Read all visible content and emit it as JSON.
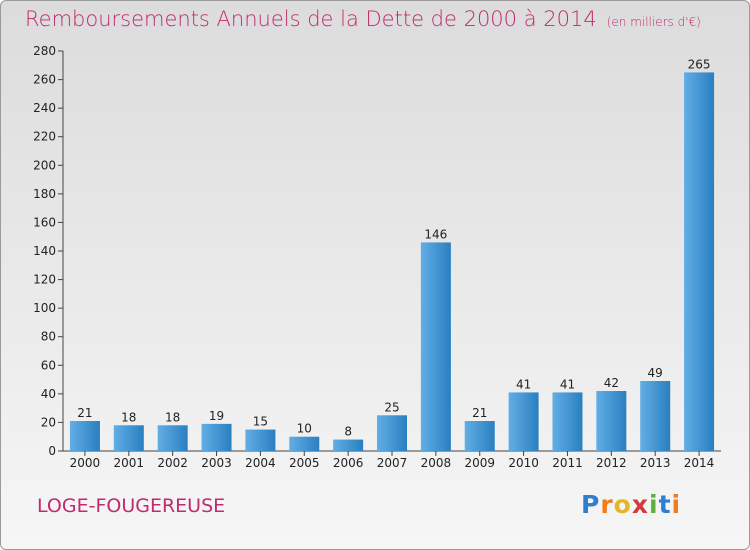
{
  "title": "Remboursements Annuels de la Dette de 2000 à 2014",
  "subtitle": "(en milliers d'€)",
  "commune": "LOGE-FOUGEREUSE",
  "brand": "Proxiti",
  "colors": {
    "title": "#c02a6e",
    "bar_light": "#62aee6",
    "bar_dark": "#2a7fc0"
  },
  "chart_data": {
    "type": "bar",
    "title": "Remboursements Annuels de la Dette de 2000 à 2014",
    "categories": [
      "2000",
      "2001",
      "2002",
      "2003",
      "2004",
      "2005",
      "2006",
      "2007",
      "2008",
      "2009",
      "2010",
      "2011",
      "2012",
      "2013",
      "2014"
    ],
    "values": [
      21,
      18,
      18,
      19,
      15,
      10,
      8,
      25,
      146,
      21,
      41,
      41,
      42,
      49,
      265
    ],
    "ylim": [
      0,
      280
    ],
    "yticks": [
      0,
      20,
      40,
      60,
      80,
      100,
      120,
      140,
      160,
      180,
      200,
      220,
      240,
      260,
      280
    ],
    "grid": false
  }
}
